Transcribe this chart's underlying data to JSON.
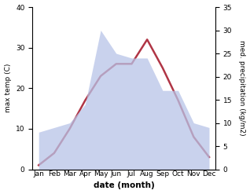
{
  "months": [
    "Jan",
    "Feb",
    "Mar",
    "Apr",
    "May",
    "Jun",
    "Jul",
    "Aug",
    "Sep",
    "Oct",
    "Nov",
    "Dec"
  ],
  "temperature": [
    1,
    4,
    10,
    17,
    23,
    26,
    26,
    32,
    25,
    17,
    8,
    3
  ],
  "precipitation": [
    8,
    9,
    10,
    14,
    30,
    25,
    24,
    24,
    17,
    17,
    10,
    9
  ],
  "temp_color": "#b03545",
  "precip_fill_color": "#b8c4e8",
  "precip_fill_alpha": 0.75,
  "temp_ylim": [
    0,
    40
  ],
  "precip_ylim": [
    0,
    35
  ],
  "temp_yticks": [
    0,
    10,
    20,
    30,
    40
  ],
  "precip_yticks": [
    0,
    5,
    10,
    15,
    20,
    25,
    30,
    35
  ],
  "xlabel": "date (month)",
  "ylabel_left": "max temp (C)",
  "ylabel_right": "med. precipitation (kg/m2)",
  "bg_color": "#ffffff",
  "linewidth": 1.8,
  "xlabel_fontsize": 7.5,
  "ylabel_fontsize": 6.5,
  "tick_fontsize": 6.5
}
